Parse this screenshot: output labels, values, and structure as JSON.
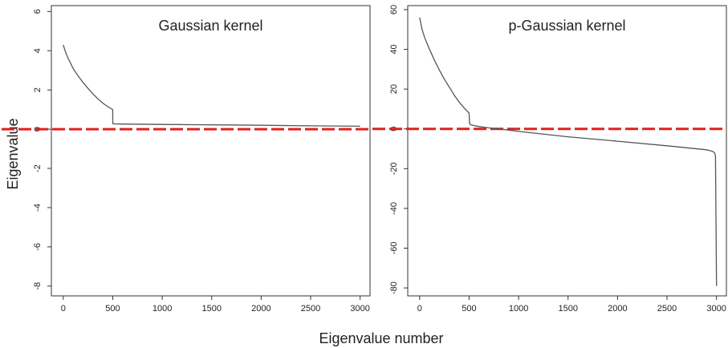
{
  "chart_data": [
    {
      "type": "line",
      "title": "Gaussian kernel",
      "xlabel": "Eigenvalue number",
      "ylabel": "Eigenvalue",
      "xlim": [
        -120,
        3100
      ],
      "ylim": [
        -8.5,
        6.3
      ],
      "x_ticks": [
        0,
        500,
        1000,
        1500,
        2000,
        2500,
        3000
      ],
      "y_ticks": [
        -8,
        -6,
        -4,
        -2,
        0,
        2,
        4,
        6
      ],
      "reference_line": {
        "y": 0,
        "style": "dashed",
        "color": "#e02020"
      },
      "series": [
        {
          "color": "#555555",
          "x": [
            0,
            25,
            50,
            100,
            150,
            200,
            250,
            300,
            350,
            400,
            450,
            500,
            501,
            510,
            600,
            1000,
            1500,
            2000,
            2500,
            3000
          ],
          "y": [
            4.3,
            3.9,
            3.6,
            3.1,
            2.72,
            2.38,
            2.08,
            1.8,
            1.55,
            1.33,
            1.15,
            1.0,
            0.28,
            0.27,
            0.26,
            0.24,
            0.22,
            0.2,
            0.17,
            0.15
          ]
        }
      ]
    },
    {
      "type": "line",
      "title": "p-Gaussian kernel",
      "xlabel": "Eigenvalue number",
      "ylabel": "Eigenvalue",
      "xlim": [
        -120,
        3100
      ],
      "ylim": [
        -84,
        62
      ],
      "x_ticks": [
        0,
        500,
        1000,
        1500,
        2000,
        2500,
        3000
      ],
      "y_ticks": [
        -80,
        -60,
        -40,
        -20,
        0,
        20,
        40,
        60
      ],
      "reference_line": {
        "y": 0,
        "style": "dashed",
        "color": "#e02020"
      },
      "series": [
        {
          "color": "#555555",
          "x": [
            0,
            25,
            50,
            100,
            150,
            200,
            250,
            300,
            350,
            400,
            450,
            500,
            505,
            520,
            600,
            700,
            800,
            1000,
            1500,
            2000,
            2500,
            2900,
            2960,
            2980,
            2990,
            3000
          ],
          "y": [
            56,
            50,
            46,
            40,
            34.5,
            29.5,
            25,
            21,
            17,
            13.5,
            10.5,
            8,
            2.5,
            2,
            1.2,
            0.5,
            0,
            -1.3,
            -4,
            -6.2,
            -8.5,
            -10.5,
            -11.3,
            -12,
            -13.5,
            -79
          ]
        }
      ]
    }
  ]
}
